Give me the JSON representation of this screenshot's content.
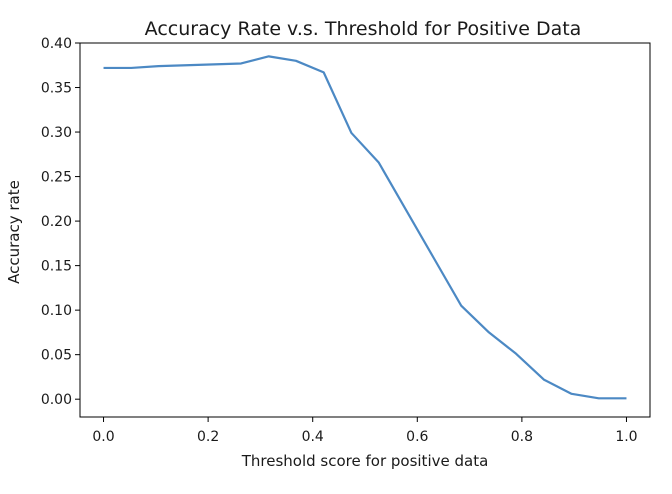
{
  "chart_data": {
    "type": "line",
    "title": "Accuracy Rate v.s. Threshold for Positive Data",
    "xlabel": "Threshold score for positive data",
    "ylabel": "Accuracy rate",
    "xlim": [
      -0.045,
      1.045
    ],
    "ylim": [
      -0.02,
      0.4
    ],
    "xticks": [
      0.0,
      0.2,
      0.4,
      0.6,
      0.8,
      1.0
    ],
    "xtick_labels": [
      "0.0",
      "0.2",
      "0.4",
      "0.6",
      "0.8",
      "1.0"
    ],
    "yticks": [
      0.0,
      0.05,
      0.1,
      0.15,
      0.2,
      0.25,
      0.3,
      0.35,
      0.4
    ],
    "ytick_labels": [
      "0.00",
      "0.05",
      "0.10",
      "0.15",
      "0.20",
      "0.25",
      "0.30",
      "0.35",
      "0.40"
    ],
    "grid": false,
    "color": "#4c89c4",
    "series": [
      {
        "x": [
          0.0,
          0.053,
          0.105,
          0.158,
          0.211,
          0.263,
          0.316,
          0.368,
          0.421,
          0.474,
          0.526,
          0.579,
          0.632,
          0.684,
          0.737,
          0.789,
          0.842,
          0.895,
          0.947,
          1.0
        ],
        "values": [
          0.372,
          0.372,
          0.374,
          0.375,
          0.376,
          0.377,
          0.385,
          0.38,
          0.367,
          0.299,
          0.266,
          0.212,
          0.158,
          0.105,
          0.075,
          0.051,
          0.022,
          0.006,
          0.001,
          0.001
        ]
      }
    ]
  }
}
